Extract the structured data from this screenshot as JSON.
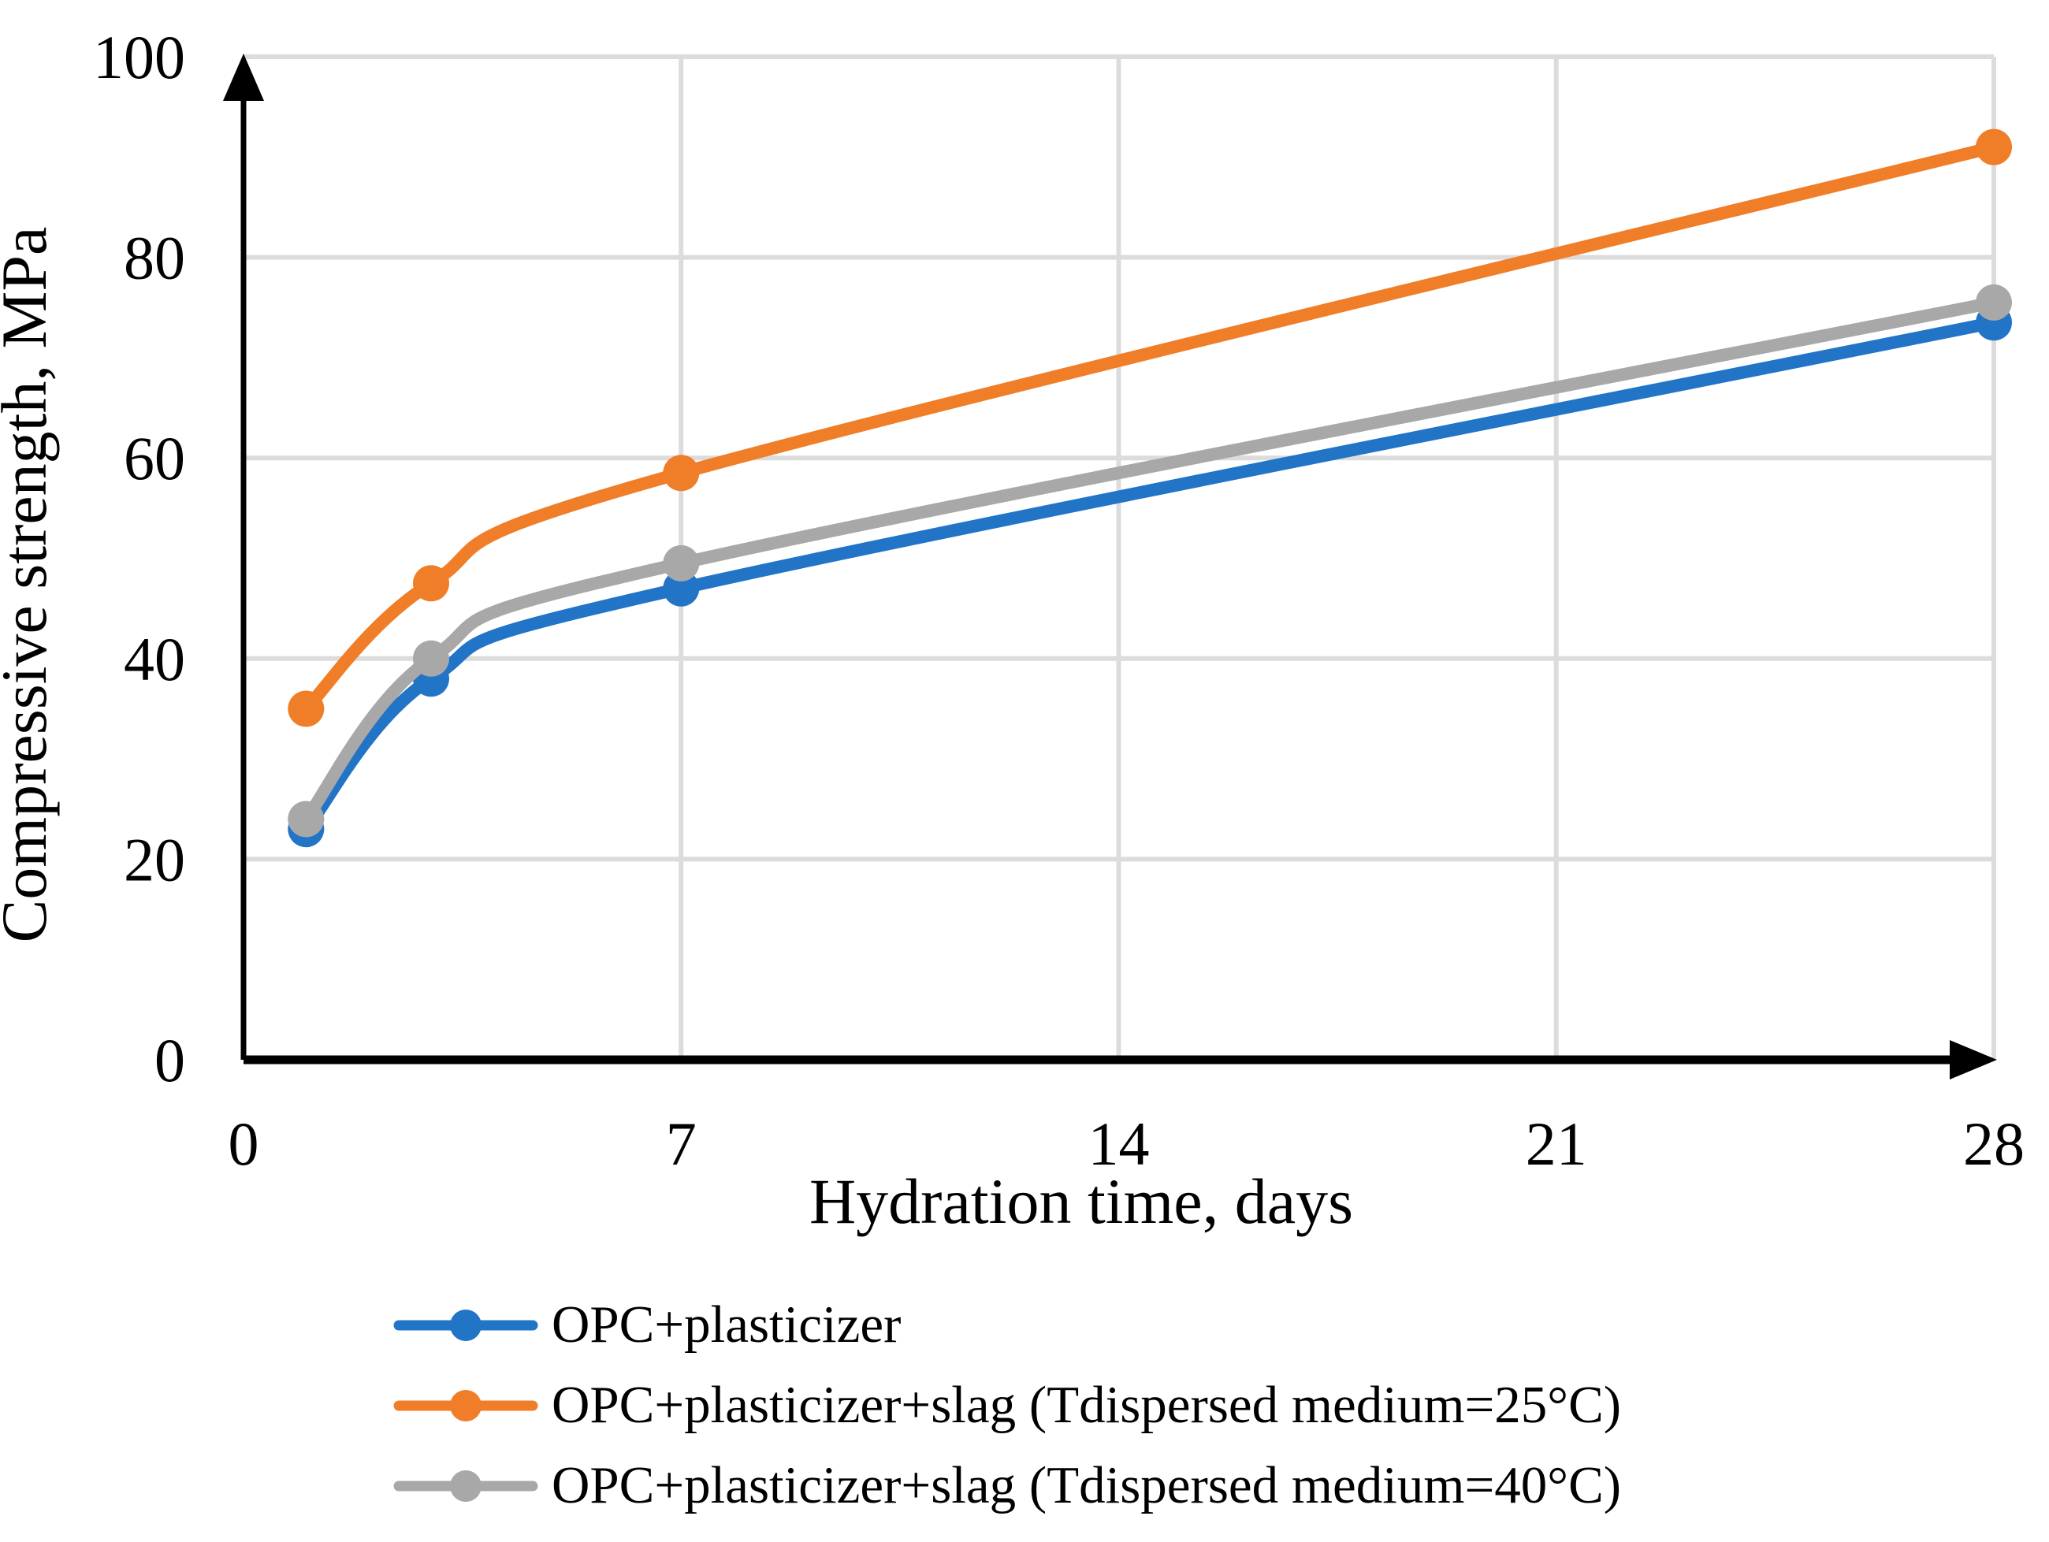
{
  "chart_data": {
    "type": "line",
    "title": "",
    "xlabel": "Hydration time, days",
    "ylabel": "Compressive strength, MPa",
    "x": [
      1,
      3,
      7,
      28
    ],
    "series": [
      {
        "name": "OPC+plasticizer",
        "color": "#2274C7",
        "values": [
          23,
          38,
          47,
          73.5
        ]
      },
      {
        "name": "OPC+plasticizer+slag  (Tdispersed medium=25°C)",
        "color": "#F07E28",
        "values": [
          35,
          47.5,
          58.5,
          91
        ]
      },
      {
        "name": "OPC+plasticizer+slag  (Tdispersed medium=40°C)",
        "color": "#A8A8A8",
        "values": [
          24,
          40,
          49.5,
          75.5
        ]
      }
    ],
    "xlim": [
      0,
      28
    ],
    "ylim": [
      0,
      100
    ],
    "x_ticks": [
      0,
      7,
      14,
      21,
      28
    ],
    "y_ticks": [
      0,
      20,
      40,
      60,
      80,
      100
    ],
    "grid": true,
    "gridline_color": "#DCDCDC",
    "axis_color": "#000000",
    "legend_position": "bottom-left",
    "smooth_lines": true,
    "marker": "circle"
  }
}
